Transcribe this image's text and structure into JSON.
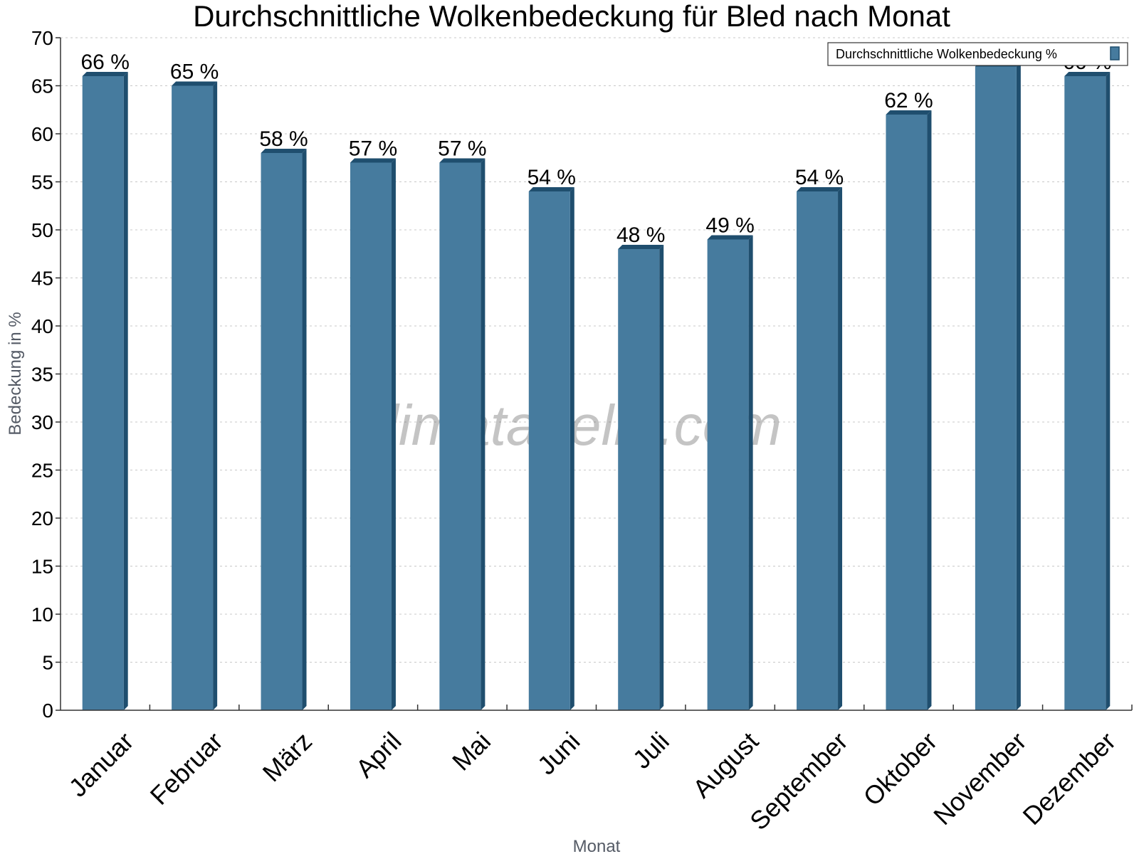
{
  "chart_data": {
    "type": "bar",
    "title": "Durchschnittliche Wolkenbedeckung für Bled nach Monat",
    "xlabel": "Monat",
    "ylabel": "Bedeckung in %",
    "ylim": [
      0,
      70
    ],
    "ytick_step": 5,
    "grid": true,
    "legend_position": "top-right",
    "categories": [
      "Januar",
      "Februar",
      "März",
      "April",
      "Mai",
      "Juni",
      "Juli",
      "August",
      "September",
      "Oktober",
      "November",
      "Dezember"
    ],
    "series": [
      {
        "name": "Durchschnittliche Wolkenbedeckung %",
        "values": [
          66,
          65,
          58,
          57,
          57,
          54,
          48,
          49,
          54,
          62,
          67,
          66
        ],
        "color": "#467b9e",
        "shade_color": "#1f4e6e"
      }
    ],
    "value_suffix": " %",
    "watermark": "klimatabelle.com"
  }
}
